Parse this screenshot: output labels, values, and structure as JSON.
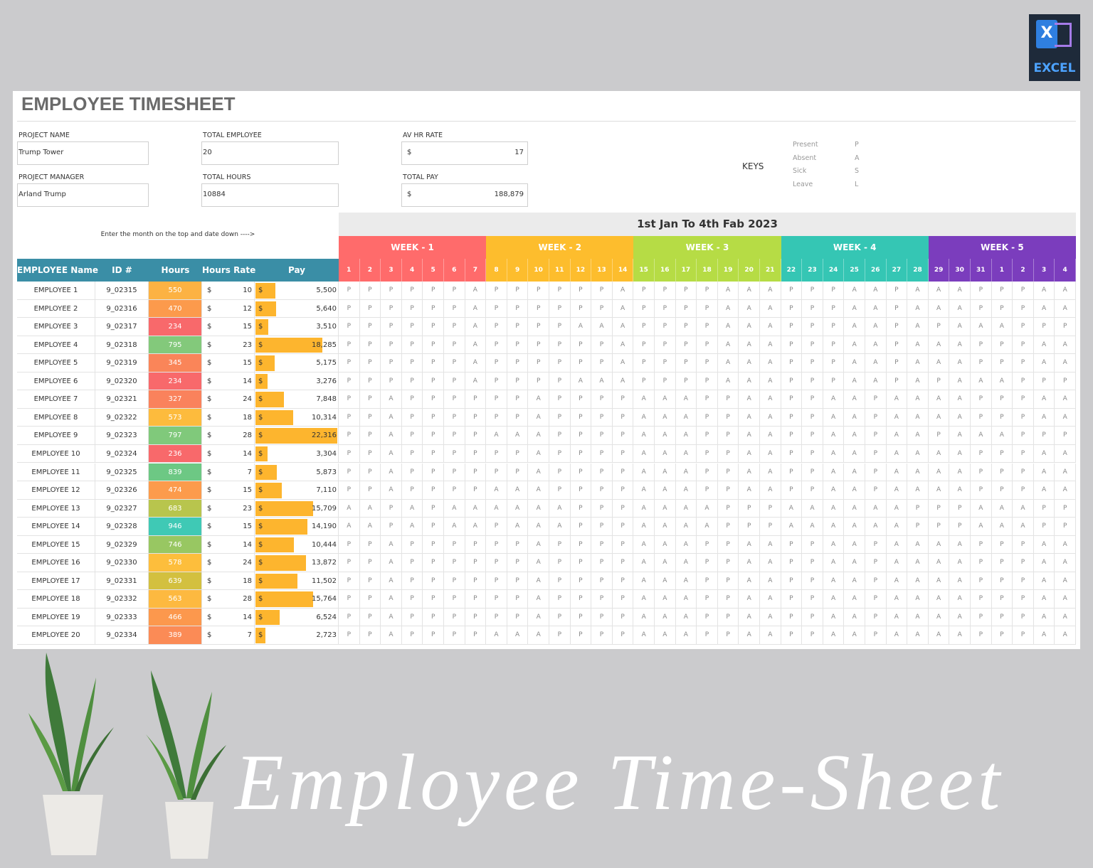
{
  "badge": {
    "letter": "X",
    "label": "EXCEL"
  },
  "header": {
    "title": "EMPLOYEE TIMESHEET"
  },
  "info": [
    {
      "label": "PROJECT NAME",
      "value": "Trump Tower"
    },
    {
      "label": "TOTAL EMPLOYEE",
      "value": "20"
    },
    {
      "label": "AV HR RATE",
      "currency": "$",
      "value": "17"
    },
    {
      "label": "PROJECT MANAGER",
      "value": "Arland Trump"
    },
    {
      "label": "TOTAL HOURS",
      "value": "10884"
    },
    {
      "label": "TOTAL PAY",
      "currency": "$",
      "value": "188,879"
    }
  ],
  "keys": {
    "title": "KEYS",
    "items": [
      {
        "name": "Present",
        "code": "P"
      },
      {
        "name": "Absent",
        "code": "A"
      },
      {
        "name": "Sick",
        "code": "S"
      },
      {
        "name": "Leave",
        "code": "L"
      }
    ]
  },
  "instruction": "Enter the month on the top and date down ---->",
  "period": "1st Jan To 4th Fab 2023",
  "weeks": [
    {
      "label": "WEEK - 1",
      "color": "#ff6b6b"
    },
    {
      "label": "WEEK - 2",
      "color": "#fdbd2d"
    },
    {
      "label": "WEEK - 3",
      "color": "#b6dc45"
    },
    {
      "label": "WEEK - 4",
      "color": "#35c6b4"
    },
    {
      "label": "WEEK - 5",
      "color": "#7b3dbd"
    }
  ],
  "days": [
    1,
    2,
    3,
    4,
    5,
    6,
    7,
    8,
    9,
    10,
    11,
    12,
    13,
    14,
    15,
    16,
    17,
    18,
    19,
    20,
    21,
    22,
    23,
    24,
    25,
    26,
    27,
    28,
    29,
    30,
    31,
    1,
    2,
    3,
    4
  ],
  "table": {
    "columns": [
      "EMPLOYEE Name",
      "ID #",
      "Hours",
      "Hours Rate",
      "Pay"
    ],
    "currency": "$",
    "bar_color": "#fdb52e",
    "rows": [
      {
        "name": "EMPLOYEE 1",
        "id": "9_02315",
        "hours": 550,
        "hours_color": "#fcb243",
        "rate": 10,
        "pay": {
          "value": 5500,
          "label": "5,500"
        },
        "attendance": [
          "P",
          "P",
          "P",
          "P",
          "P",
          "P",
          "A",
          "P",
          "P",
          "P",
          "P",
          "P",
          "P",
          "A",
          "P",
          "P",
          "P",
          "P",
          "A",
          "A",
          "A",
          "P",
          "P",
          "P",
          "A",
          "A",
          "P",
          "A",
          "A",
          "A",
          "P",
          "P",
          "P",
          "A",
          "A"
        ]
      },
      {
        "name": "EMPLOYEE 2",
        "id": "9_02316",
        "hours": 470,
        "hours_color": "#fc9a4c",
        "rate": 12,
        "pay": {
          "value": 5640,
          "label": "5,640"
        },
        "attendance": [
          "P",
          "P",
          "P",
          "P",
          "P",
          "P",
          "A",
          "P",
          "P",
          "P",
          "P",
          "P",
          "P",
          "A",
          "P",
          "P",
          "P",
          "P",
          "A",
          "A",
          "A",
          "P",
          "P",
          "P",
          "A",
          "A",
          "P",
          "A",
          "A",
          "A",
          "P",
          "P",
          "P",
          "A",
          "A"
        ]
      },
      {
        "name": "EMPLOYEE 3",
        "id": "9_02317",
        "hours": 234,
        "hours_color": "#f8696b",
        "rate": 15,
        "pay": {
          "value": 3510,
          "label": "3,510"
        },
        "attendance": [
          "P",
          "P",
          "P",
          "P",
          "P",
          "P",
          "A",
          "P",
          "P",
          "P",
          "P",
          "A",
          "A",
          "A",
          "P",
          "P",
          "P",
          "P",
          "A",
          "A",
          "A",
          "P",
          "P",
          "P",
          "A",
          "A",
          "P",
          "A",
          "P",
          "A",
          "A",
          "A",
          "P",
          "P",
          "P"
        ]
      },
      {
        "name": "EMPLOYEE 4",
        "id": "9_02318",
        "hours": 795,
        "hours_color": "#83c97b",
        "rate": 23,
        "pay": {
          "value": 18285,
          "label": "18,285"
        },
        "attendance": [
          "P",
          "P",
          "P",
          "P",
          "P",
          "P",
          "A",
          "P",
          "P",
          "P",
          "P",
          "P",
          "P",
          "A",
          "P",
          "P",
          "P",
          "P",
          "A",
          "A",
          "A",
          "P",
          "P",
          "P",
          "A",
          "A",
          "P",
          "A",
          "A",
          "A",
          "P",
          "P",
          "P",
          "A",
          "A"
        ]
      },
      {
        "name": "EMPLOYEE 5",
        "id": "9_02319",
        "hours": 345,
        "hours_color": "#fa8559",
        "rate": 15,
        "pay": {
          "value": 5175,
          "label": "5,175"
        },
        "attendance": [
          "P",
          "P",
          "P",
          "P",
          "P",
          "P",
          "A",
          "P",
          "P",
          "P",
          "P",
          "P",
          "P",
          "A",
          "P",
          "P",
          "P",
          "P",
          "A",
          "A",
          "A",
          "P",
          "P",
          "P",
          "A",
          "A",
          "P",
          "A",
          "A",
          "A",
          "P",
          "P",
          "P",
          "A",
          "A"
        ]
      },
      {
        "name": "EMPLOYEE 6",
        "id": "9_02320",
        "hours": 234,
        "hours_color": "#f8696b",
        "rate": 14,
        "pay": {
          "value": 3276,
          "label": "3,276"
        },
        "attendance": [
          "P",
          "P",
          "P",
          "P",
          "P",
          "P",
          "A",
          "P",
          "P",
          "P",
          "P",
          "A",
          "A",
          "A",
          "P",
          "P",
          "P",
          "P",
          "A",
          "A",
          "A",
          "P",
          "P",
          "P",
          "A",
          "A",
          "P",
          "A",
          "P",
          "A",
          "A",
          "A",
          "P",
          "P",
          "P"
        ]
      },
      {
        "name": "EMPLOYEE 7",
        "id": "9_02321",
        "hours": 327,
        "hours_color": "#fa825c",
        "rate": 24,
        "pay": {
          "value": 7848,
          "label": "7,848"
        },
        "attendance": [
          "P",
          "P",
          "A",
          "P",
          "P",
          "P",
          "P",
          "P",
          "P",
          "A",
          "P",
          "P",
          "P",
          "P",
          "A",
          "A",
          "A",
          "P",
          "P",
          "A",
          "A",
          "P",
          "P",
          "A",
          "A",
          "P",
          "A",
          "A",
          "A",
          "A",
          "P",
          "P",
          "P",
          "A",
          "A"
        ]
      },
      {
        "name": "EMPLOYEE 8",
        "id": "9_02322",
        "hours": 573,
        "hours_color": "#fdbb3d",
        "rate": 18,
        "pay": {
          "value": 10314,
          "label": "10,314"
        },
        "attendance": [
          "P",
          "P",
          "A",
          "P",
          "P",
          "P",
          "P",
          "P",
          "P",
          "A",
          "P",
          "P",
          "P",
          "P",
          "A",
          "A",
          "A",
          "P",
          "P",
          "A",
          "A",
          "P",
          "P",
          "A",
          "A",
          "P",
          "A",
          "A",
          "A",
          "A",
          "P",
          "P",
          "P",
          "A",
          "A"
        ]
      },
      {
        "name": "EMPLOYEE 9",
        "id": "9_02323",
        "hours": 797,
        "hours_color": "#80c97b",
        "rate": 28,
        "pay": {
          "value": 22316,
          "label": "22,316"
        },
        "attendance": [
          "P",
          "P",
          "A",
          "P",
          "P",
          "P",
          "P",
          "A",
          "A",
          "A",
          "P",
          "P",
          "P",
          "P",
          "A",
          "A",
          "A",
          "P",
          "P",
          "A",
          "A",
          "P",
          "P",
          "A",
          "A",
          "P",
          "A",
          "A",
          "P",
          "A",
          "A",
          "A",
          "P",
          "P",
          "P"
        ]
      },
      {
        "name": "EMPLOYEE 10",
        "id": "9_02324",
        "hours": 236,
        "hours_color": "#f8696b",
        "rate": 14,
        "pay": {
          "value": 3304,
          "label": "3,304"
        },
        "attendance": [
          "P",
          "P",
          "A",
          "P",
          "P",
          "P",
          "P",
          "P",
          "P",
          "A",
          "P",
          "P",
          "P",
          "P",
          "A",
          "A",
          "A",
          "P",
          "P",
          "A",
          "A",
          "P",
          "P",
          "A",
          "A",
          "P",
          "A",
          "A",
          "A",
          "A",
          "P",
          "P",
          "P",
          "A",
          "A"
        ]
      },
      {
        "name": "EMPLOYEE 11",
        "id": "9_02325",
        "hours": 839,
        "hours_color": "#6dc884",
        "rate": 7,
        "pay": {
          "value": 5873,
          "label": "5,873"
        },
        "attendance": [
          "P",
          "P",
          "A",
          "P",
          "P",
          "P",
          "P",
          "P",
          "P",
          "A",
          "P",
          "P",
          "P",
          "P",
          "A",
          "A",
          "A",
          "P",
          "P",
          "A",
          "A",
          "P",
          "P",
          "A",
          "A",
          "P",
          "A",
          "A",
          "A",
          "A",
          "P",
          "P",
          "P",
          "A",
          "A"
        ]
      },
      {
        "name": "EMPLOYEE 12",
        "id": "9_02326",
        "hours": 474,
        "hours_color": "#fc9b4c",
        "rate": 15,
        "pay": {
          "value": 7110,
          "label": "7,110"
        },
        "attendance": [
          "P",
          "P",
          "A",
          "P",
          "P",
          "P",
          "P",
          "A",
          "A",
          "A",
          "P",
          "P",
          "P",
          "P",
          "A",
          "A",
          "A",
          "P",
          "P",
          "A",
          "A",
          "P",
          "P",
          "A",
          "A",
          "P",
          "A",
          "A",
          "A",
          "A",
          "P",
          "P",
          "P",
          "A",
          "A"
        ]
      },
      {
        "name": "EMPLOYEE 13",
        "id": "9_02327",
        "hours": 683,
        "hours_color": "#b8c54d",
        "rate": 23,
        "pay": {
          "value": 15709,
          "label": "15,709"
        },
        "attendance": [
          "A",
          "A",
          "P",
          "A",
          "P",
          "A",
          "A",
          "A",
          "A",
          "A",
          "A",
          "P",
          "P",
          "P",
          "A",
          "A",
          "A",
          "A",
          "P",
          "P",
          "P",
          "A",
          "A",
          "A",
          "A",
          "A",
          "A",
          "P",
          "P",
          "P",
          "A",
          "A",
          "A",
          "P",
          "P"
        ]
      },
      {
        "name": "EMPLOYEE 14",
        "id": "9_02328",
        "hours": 946,
        "hours_color": "#3fc9b5",
        "rate": 15,
        "pay": {
          "value": 14190,
          "label": "14,190"
        },
        "attendance": [
          "A",
          "A",
          "P",
          "A",
          "P",
          "A",
          "A",
          "P",
          "A",
          "A",
          "A",
          "P",
          "P",
          "P",
          "A",
          "A",
          "A",
          "A",
          "P",
          "P",
          "P",
          "A",
          "A",
          "A",
          "A",
          "A",
          "A",
          "P",
          "P",
          "P",
          "A",
          "A",
          "A",
          "P",
          "P"
        ]
      },
      {
        "name": "EMPLOYEE 15",
        "id": "9_02329",
        "hours": 746,
        "hours_color": "#98c762",
        "rate": 14,
        "pay": {
          "value": 10444,
          "label": "10,444"
        },
        "attendance": [
          "P",
          "P",
          "A",
          "P",
          "P",
          "P",
          "P",
          "P",
          "P",
          "A",
          "P",
          "P",
          "P",
          "P",
          "A",
          "A",
          "A",
          "P",
          "P",
          "A",
          "A",
          "P",
          "P",
          "A",
          "A",
          "P",
          "A",
          "A",
          "A",
          "A",
          "P",
          "P",
          "P",
          "A",
          "A"
        ]
      },
      {
        "name": "EMPLOYEE 16",
        "id": "9_02330",
        "hours": 578,
        "hours_color": "#fdbe3c",
        "rate": 24,
        "pay": {
          "value": 13872,
          "label": "13,872"
        },
        "attendance": [
          "P",
          "P",
          "A",
          "P",
          "P",
          "P",
          "P",
          "P",
          "P",
          "A",
          "P",
          "P",
          "P",
          "P",
          "A",
          "A",
          "A",
          "P",
          "P",
          "A",
          "A",
          "P",
          "P",
          "A",
          "A",
          "P",
          "A",
          "A",
          "A",
          "A",
          "P",
          "P",
          "P",
          "A",
          "A"
        ]
      },
      {
        "name": "EMPLOYEE 17",
        "id": "9_02331",
        "hours": 639,
        "hours_color": "#d3c03f",
        "rate": 18,
        "pay": {
          "value": 11502,
          "label": "11,502"
        },
        "attendance": [
          "P",
          "P",
          "A",
          "P",
          "P",
          "P",
          "P",
          "P",
          "P",
          "A",
          "P",
          "P",
          "P",
          "P",
          "A",
          "A",
          "A",
          "P",
          "P",
          "A",
          "A",
          "P",
          "P",
          "A",
          "A",
          "P",
          "A",
          "A",
          "A",
          "A",
          "P",
          "P",
          "P",
          "A",
          "A"
        ]
      },
      {
        "name": "EMPLOYEE 18",
        "id": "9_02332",
        "hours": 563,
        "hours_color": "#fdb940",
        "rate": 28,
        "pay": {
          "value": 15764,
          "label": "15,764"
        },
        "attendance": [
          "P",
          "P",
          "A",
          "P",
          "P",
          "P",
          "P",
          "P",
          "P",
          "A",
          "P",
          "P",
          "P",
          "P",
          "A",
          "A",
          "A",
          "P",
          "P",
          "A",
          "A",
          "P",
          "P",
          "A",
          "A",
          "P",
          "A",
          "A",
          "A",
          "A",
          "P",
          "P",
          "P",
          "A",
          "A"
        ]
      },
      {
        "name": "EMPLOYEE 19",
        "id": "9_02333",
        "hours": 466,
        "hours_color": "#fc984d",
        "rate": 14,
        "pay": {
          "value": 6524,
          "label": "6,524"
        },
        "attendance": [
          "P",
          "P",
          "A",
          "P",
          "P",
          "P",
          "P",
          "P",
          "P",
          "A",
          "P",
          "P",
          "P",
          "P",
          "A",
          "A",
          "A",
          "P",
          "P",
          "A",
          "A",
          "P",
          "P",
          "A",
          "A",
          "P",
          "A",
          "A",
          "A",
          "A",
          "P",
          "P",
          "P",
          "A",
          "A"
        ]
      },
      {
        "name": "EMPLOYEE 20",
        "id": "9_02334",
        "hours": 389,
        "hours_color": "#fb8b56",
        "rate": 7,
        "pay": {
          "value": 2723,
          "label": "2,723"
        },
        "attendance": [
          "P",
          "P",
          "A",
          "P",
          "P",
          "P",
          "P",
          "A",
          "A",
          "A",
          "P",
          "P",
          "P",
          "P",
          "A",
          "A",
          "A",
          "P",
          "P",
          "A",
          "A",
          "P",
          "P",
          "A",
          "A",
          "P",
          "A",
          "A",
          "A",
          "A",
          "P",
          "P",
          "P",
          "A",
          "A"
        ]
      }
    ]
  },
  "footer_script": "Employee Time-Sheet"
}
